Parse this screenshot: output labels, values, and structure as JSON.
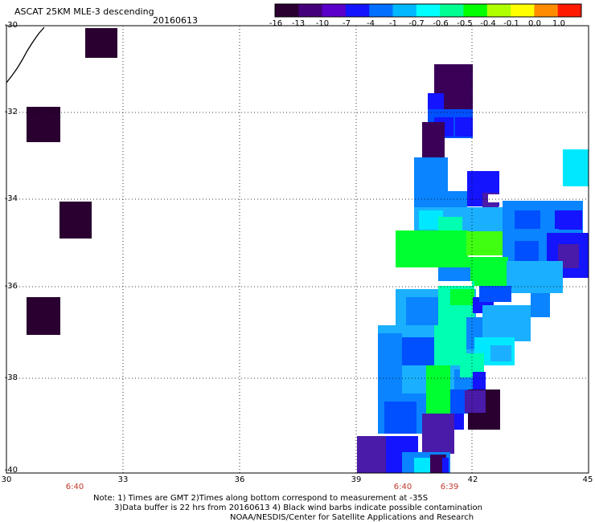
{
  "header": {
    "title": "ASCAT 25KM MLE-3 descending",
    "date": "20160613"
  },
  "colorbar": {
    "labels": [
      "-16",
      "-13",
      "-10",
      "-7",
      "-4",
      "-1",
      "-0.7",
      "-0.6",
      "-0.5",
      "-0.4",
      "-0.1",
      "0.0",
      "1.0"
    ],
    "colors": [
      "#2a0030",
      "#44007a",
      "#5a00c8",
      "#1414ff",
      "#0070ff",
      "#00b8ff",
      "#00ffff",
      "#00ff90",
      "#00ff00",
      "#b0ff00",
      "#ffff00",
      "#ff8c00",
      "#ff1a00"
    ]
  },
  "map": {
    "lon_labels": [
      "30",
      "33",
      "36",
      "39",
      "42",
      "45"
    ],
    "lat_labels": [
      "-30",
      "-32",
      "-34",
      "-36",
      "-38",
      "-40"
    ],
    "time_labels": [
      "6:40",
      "6:40",
      "6:39"
    ]
  },
  "footer": {
    "line1": "Note: 1) Times are GMT 2)Times along bottom correspond to measurement at -35S",
    "line2": "3)Data buffer is 22 hrs from 20160613 4) Black wind barbs indicate possible contamination",
    "line3": "NOAA/NESDIS/Center for Satellite Applications and Research"
  }
}
